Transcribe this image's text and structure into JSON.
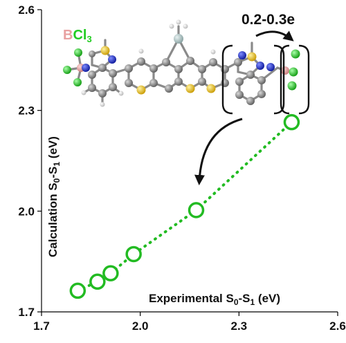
{
  "chart_data": {
    "type": "scatter",
    "title": "",
    "xlabel_main": "Experimental S",
    "xlabel_sub0": "0",
    "xlabel_mid": "-S",
    "xlabel_sub1": "1",
    "xlabel_unit": " (eV)",
    "ylabel_main": "Calculation S",
    "ylabel_sub0": "0",
    "ylabel_mid": "-S",
    "ylabel_sub1": "1",
    "ylabel_unit": " (eV)",
    "xlim": [
      1.7,
      2.6
    ],
    "ylim": [
      1.7,
      2.6
    ],
    "xticks": [
      "1.7",
      "2.0",
      "2.3",
      "2.6"
    ],
    "yticks": [
      "1.7",
      "2.0",
      "2.3",
      "2.6"
    ],
    "xtick_values": [
      1.7,
      2.0,
      2.3,
      2.6
    ],
    "ytick_values": [
      1.7,
      2.0,
      2.3,
      2.6
    ],
    "grid": false,
    "series": [
      {
        "x": [
          1.81,
          1.87,
          1.91,
          1.98,
          2.17,
          2.46
        ],
        "y": [
          1.763,
          1.79,
          1.815,
          1.872,
          2.003,
          2.265
        ],
        "color": "#22bb22",
        "marker": "open-circle",
        "line": "dotted"
      }
    ],
    "annotations": {
      "charge_transfer": "0.2-0.3e",
      "bcl3_b": "B",
      "bcl3_cl": "Cl",
      "bcl3_sub": "3"
    }
  },
  "colors": {
    "series": "#22bb22",
    "boron": "#e8a0a0",
    "chlorine": "#22cc22",
    "carbon": "#7a7a7a",
    "hydrogen": "#e6e6e6",
    "sulfur": "#e6c000",
    "nitrogen": "#1a2ccc"
  },
  "icons": [
    "molecule-structure-icon",
    "curved-arrow-icon"
  ]
}
